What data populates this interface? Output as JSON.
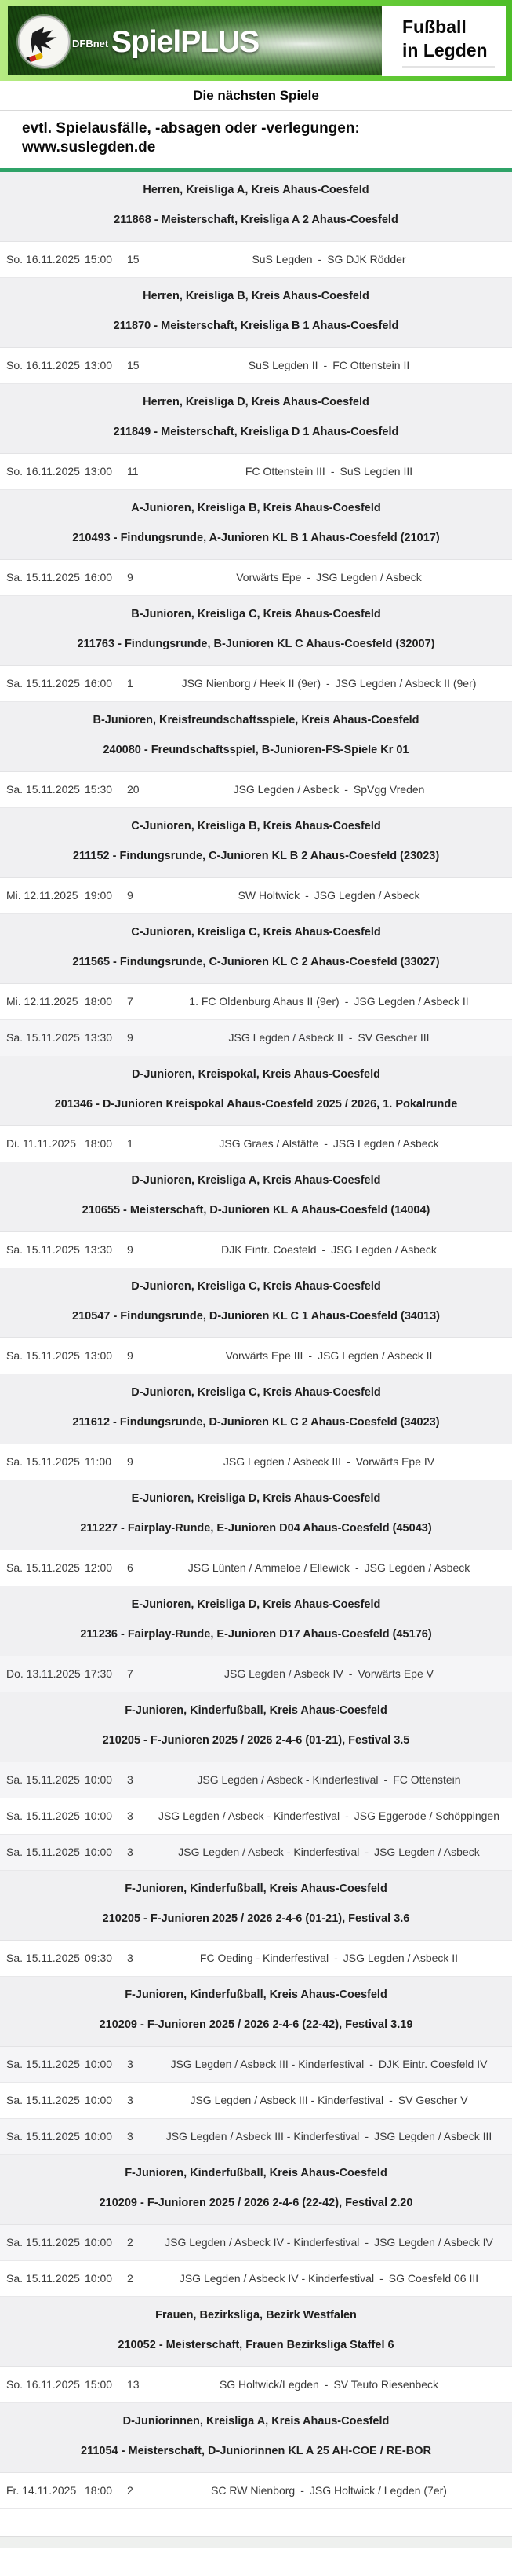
{
  "header": {
    "brand": "DFBnet",
    "product": "SpielPLUS",
    "site_line1": "Fußball",
    "site_line2": "in Legden"
  },
  "page": {
    "heading": "Die nächsten Spiele",
    "notice_line1": "evtl. Spielausfälle, -absagen oder -verlegungen:",
    "notice_line2": "www.suslegden.de"
  },
  "colors": {
    "accent_green_bar": "#2fa368",
    "banner_green": "#7fd84a",
    "group_header_bg": "#f0f0f2",
    "row_alt_bg": "#f5f5f7"
  },
  "fixtures": [
    {
      "competition": "Herren, Kreisliga A, Kreis Ahaus-Coesfeld",
      "round": "211868 - Meisterschaft, Kreisliga A 2 Ahaus-Coesfeld",
      "matches": [
        {
          "date": "So. 16.11.2025",
          "time": "15:00",
          "matchday": "15",
          "home": "SuS Legden",
          "away": "SG DJK Rödder",
          "shaded": false
        }
      ]
    },
    {
      "competition": "Herren, Kreisliga B, Kreis Ahaus-Coesfeld",
      "round": "211870 - Meisterschaft, Kreisliga B 1 Ahaus-Coesfeld",
      "matches": [
        {
          "date": "So. 16.11.2025",
          "time": "13:00",
          "matchday": "15",
          "home": "SuS Legden II",
          "away": "FC Ottenstein II",
          "shaded": false
        }
      ]
    },
    {
      "competition": "Herren, Kreisliga D, Kreis Ahaus-Coesfeld",
      "round": "211849 - Meisterschaft, Kreisliga D 1 Ahaus-Coesfeld",
      "matches": [
        {
          "date": "So. 16.11.2025",
          "time": "13:00",
          "matchday": "11",
          "home": "FC Ottenstein III",
          "away": "SuS Legden III",
          "shaded": false
        }
      ]
    },
    {
      "competition": "A-Junioren, Kreisliga B, Kreis Ahaus-Coesfeld",
      "round": "210493 - Findungsrunde, A-Junioren KL B 1 Ahaus-Coesfeld (21017)",
      "matches": [
        {
          "date": "Sa. 15.11.2025",
          "time": "16:00",
          "matchday": "9",
          "home": "Vorwärts Epe",
          "away": "JSG Legden / Asbeck",
          "shaded": false
        }
      ]
    },
    {
      "competition": "B-Junioren, Kreisliga C, Kreis Ahaus-Coesfeld",
      "round": "211763 - Findungsrunde, B-Junioren KL C Ahaus-Coesfeld (32007)",
      "matches": [
        {
          "date": "Sa. 15.11.2025",
          "time": "16:00",
          "matchday": "1",
          "home": "JSG Nienborg / Heek II (9er)",
          "away": "JSG Legden / Asbeck II (9er)",
          "shaded": false
        }
      ]
    },
    {
      "competition": "B-Junioren, Kreisfreundschaftsspiele, Kreis Ahaus-Coesfeld",
      "round": "240080 - Freundschaftsspiel, B-Junioren-FS-Spiele Kr 01",
      "matches": [
        {
          "date": "Sa. 15.11.2025",
          "time": "15:30",
          "matchday": "20",
          "home": "JSG Legden / Asbeck",
          "away": "SpVgg Vreden",
          "shaded": false
        }
      ]
    },
    {
      "competition": "C-Junioren, Kreisliga B, Kreis Ahaus-Coesfeld",
      "round": "211152 - Findungsrunde, C-Junioren KL B 2 Ahaus-Coesfeld (23023)",
      "matches": [
        {
          "date": "Mi. 12.11.2025",
          "time": "19:00",
          "matchday": "9",
          "home": "SW Holtwick",
          "away": "JSG Legden / Asbeck",
          "shaded": false
        }
      ]
    },
    {
      "competition": "C-Junioren, Kreisliga C, Kreis Ahaus-Coesfeld",
      "round": "211565 - Findungsrunde, C-Junioren KL C 2 Ahaus-Coesfeld (33027)",
      "matches": [
        {
          "date": "Mi. 12.11.2025",
          "time": "18:00",
          "matchday": "7",
          "home": "1. FC Oldenburg Ahaus II (9er)",
          "away": "JSG Legden / Asbeck II",
          "shaded": false
        },
        {
          "date": "Sa. 15.11.2025",
          "time": "13:30",
          "matchday": "9",
          "home": "JSG Legden / Asbeck II",
          "away": "SV Gescher III",
          "shaded": true
        }
      ]
    },
    {
      "competition": "D-Junioren, Kreispokal, Kreis Ahaus-Coesfeld",
      "round": "201346 - D-Junioren Kreispokal Ahaus-Coesfeld 2025 / 2026, 1. Pokalrunde",
      "matches": [
        {
          "date": "Di. 11.11.2025",
          "time": "18:00",
          "matchday": "1",
          "home": "JSG Graes / Alstätte",
          "away": "JSG Legden / Asbeck",
          "shaded": false
        }
      ]
    },
    {
      "competition": "D-Junioren, Kreisliga A, Kreis Ahaus-Coesfeld",
      "round": "210655 - Meisterschaft, D-Junioren KL A Ahaus-Coesfeld (14004)",
      "matches": [
        {
          "date": "Sa. 15.11.2025",
          "time": "13:30",
          "matchday": "9",
          "home": "DJK Eintr. Coesfeld",
          "away": "JSG Legden / Asbeck",
          "shaded": false
        }
      ]
    },
    {
      "competition": "D-Junioren, Kreisliga C, Kreis Ahaus-Coesfeld",
      "round": "210547 - Findungsrunde, D-Junioren KL C 1 Ahaus-Coesfeld (34013)",
      "matches": [
        {
          "date": "Sa. 15.11.2025",
          "time": "13:00",
          "matchday": "9",
          "home": "Vorwärts Epe III",
          "away": "JSG Legden / Asbeck II",
          "shaded": false
        }
      ]
    },
    {
      "competition": "D-Junioren, Kreisliga C, Kreis Ahaus-Coesfeld",
      "round": "211612 - Findungsrunde, D-Junioren KL C 2 Ahaus-Coesfeld (34023)",
      "matches": [
        {
          "date": "Sa. 15.11.2025",
          "time": "11:00",
          "matchday": "9",
          "home": "JSG Legden / Asbeck III",
          "away": "Vorwärts Epe IV",
          "shaded": false
        }
      ]
    },
    {
      "competition": "E-Junioren, Kreisliga D, Kreis Ahaus-Coesfeld",
      "round": "211227 - Fairplay-Runde, E-Junioren D04 Ahaus-Coesfeld (45043)",
      "matches": [
        {
          "date": "Sa. 15.11.2025",
          "time": "12:00",
          "matchday": "6",
          "home": "JSG Lünten / Ammeloe / Ellewick",
          "away": "JSG Legden / Asbeck",
          "shaded": false
        }
      ]
    },
    {
      "competition": "E-Junioren, Kreisliga D, Kreis Ahaus-Coesfeld",
      "round": "211236 - Fairplay-Runde, E-Junioren D17 Ahaus-Coesfeld (45176)",
      "matches": [
        {
          "date": "Do. 13.11.2025",
          "time": "17:30",
          "matchday": "7",
          "home": "JSG Legden / Asbeck IV",
          "away": "Vorwärts Epe V",
          "shaded": true
        }
      ]
    },
    {
      "competition": "F-Junioren, Kinderfußball, Kreis Ahaus-Coesfeld",
      "round": "210205 - F-Junioren 2025 / 2026 2-4-6 (01-21), Festival 3.5",
      "matches": [
        {
          "date": "Sa. 15.11.2025",
          "time": "10:00",
          "matchday": "3",
          "home": "JSG Legden / Asbeck - Kinderfestival",
          "away": "FC Ottenstein",
          "shaded": true
        },
        {
          "date": "Sa. 15.11.2025",
          "time": "10:00",
          "matchday": "3",
          "home": "JSG Legden / Asbeck - Kinderfestival",
          "away": "JSG Eggerode / Schöppingen",
          "shaded": false
        },
        {
          "date": "Sa. 15.11.2025",
          "time": "10:00",
          "matchday": "3",
          "home": "JSG Legden / Asbeck - Kinderfestival",
          "away": "JSG Legden / Asbeck",
          "shaded": true
        }
      ]
    },
    {
      "competition": "F-Junioren, Kinderfußball, Kreis Ahaus-Coesfeld",
      "round": "210205 - F-Junioren 2025 / 2026 2-4-6 (01-21), Festival 3.6",
      "matches": [
        {
          "date": "Sa. 15.11.2025",
          "time": "09:30",
          "matchday": "3",
          "home": "FC Oeding - Kinderfestival",
          "away": "JSG Legden / Asbeck II",
          "shaded": false
        }
      ]
    },
    {
      "competition": "F-Junioren, Kinderfußball, Kreis Ahaus-Coesfeld",
      "round": "210209 - F-Junioren 2025 / 2026 2-4-6 (22-42), Festival 3.19",
      "matches": [
        {
          "date": "Sa. 15.11.2025",
          "time": "10:00",
          "matchday": "3",
          "home": "JSG Legden / Asbeck III - Kinderfestival",
          "away": "DJK Eintr. Coesfeld IV",
          "shaded": true
        },
        {
          "date": "Sa. 15.11.2025",
          "time": "10:00",
          "matchday": "3",
          "home": "JSG Legden / Asbeck III - Kinderfestival",
          "away": "SV Gescher V",
          "shaded": false
        },
        {
          "date": "Sa. 15.11.2025",
          "time": "10:00",
          "matchday": "3",
          "home": "JSG Legden / Asbeck III - Kinderfestival",
          "away": "JSG Legden / Asbeck III",
          "shaded": true
        }
      ]
    },
    {
      "competition": "F-Junioren, Kinderfußball, Kreis Ahaus-Coesfeld",
      "round": "210209 - F-Junioren 2025 / 2026 2-4-6 (22-42), Festival 2.20",
      "matches": [
        {
          "date": "Sa. 15.11.2025",
          "time": "10:00",
          "matchday": "2",
          "home": "JSG Legden / Asbeck IV - Kinderfestival",
          "away": "JSG Legden / Asbeck IV",
          "shaded": true
        },
        {
          "date": "Sa. 15.11.2025",
          "time": "10:00",
          "matchday": "2",
          "home": "JSG Legden / Asbeck IV - Kinderfestival",
          "away": "SG Coesfeld 06 III",
          "shaded": false
        }
      ]
    },
    {
      "competition": "Frauen, Bezirksliga, Bezirk Westfalen",
      "round": "210052 - Meisterschaft, Frauen Bezirksliga Staffel 6",
      "matches": [
        {
          "date": "So. 16.11.2025",
          "time": "15:00",
          "matchday": "13",
          "home": "SG Holtwick/Legden",
          "away": "SV Teuto Riesenbeck",
          "shaded": false
        }
      ]
    },
    {
      "competition": "D-Juniorinnen, Kreisliga A, Kreis Ahaus-Coesfeld",
      "round": "211054 - Meisterschaft, D-Juniorinnen KL A 25 AH-COE / RE-BOR",
      "matches": [
        {
          "date": "Fr. 14.11.2025",
          "time": "18:00",
          "matchday": "2",
          "home": "SC RW Nienborg",
          "away": "JSG Holtwick / Legden (7er)",
          "shaded": false
        }
      ]
    }
  ]
}
